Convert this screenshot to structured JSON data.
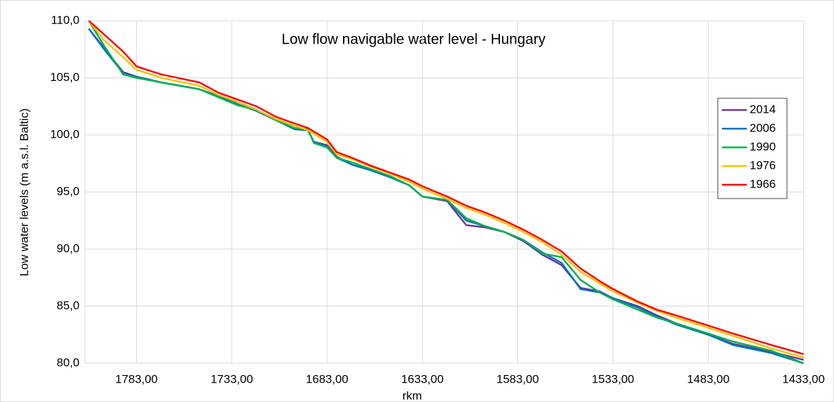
{
  "chart_data": {
    "type": "line",
    "title": "Low flow  navigable water level - Hungary",
    "x_label": "rkm",
    "y_label": "Low water levels (m a.s.l. Baltic)",
    "x": [
      1808,
      1800,
      1790,
      1783,
      1770,
      1750,
      1740,
      1730,
      1720,
      1710,
      1700,
      1693,
      1690,
      1683,
      1678,
      1670,
      1660,
      1650,
      1640,
      1633,
      1620,
      1610,
      1600,
      1590,
      1580,
      1570,
      1560,
      1550,
      1540,
      1533,
      1520,
      1510,
      1500,
      1483,
      1470,
      1450,
      1433
    ],
    "series": [
      {
        "name": "2014",
        "color": "#7030a0",
        "values": [
          109.3,
          107.6,
          105.5,
          105.1,
          104.6,
          104.0,
          103.4,
          102.7,
          102.1,
          101.3,
          100.5,
          100.4,
          99.4,
          99.1,
          98.1,
          97.4,
          96.9,
          96.3,
          95.6,
          94.6,
          94.2,
          92.1,
          91.9,
          91.5,
          90.7,
          89.5,
          88.6,
          86.6,
          86.3,
          85.7,
          85.0,
          84.2,
          83.5,
          82.5,
          81.7,
          81.0,
          80.3
        ]
      },
      {
        "name": "2006",
        "color": "#0070c0",
        "values": [
          109.3,
          107.5,
          105.4,
          105.1,
          104.6,
          104.0,
          103.4,
          102.7,
          102.1,
          101.3,
          100.5,
          100.4,
          99.4,
          99.0,
          98.0,
          97.4,
          96.9,
          96.3,
          95.6,
          94.6,
          94.3,
          92.5,
          92.0,
          91.5,
          90.8,
          89.7,
          88.8,
          86.5,
          86.2,
          85.7,
          84.9,
          84.1,
          83.4,
          82.5,
          81.6,
          80.9,
          80.0
        ]
      },
      {
        "name": "1990",
        "color": "#00b050",
        "values": [
          110.0,
          107.8,
          105.3,
          105.0,
          104.6,
          104.0,
          103.3,
          102.6,
          102.2,
          101.3,
          100.6,
          100.5,
          99.3,
          98.9,
          98.0,
          97.6,
          97.0,
          96.4,
          95.6,
          94.6,
          94.3,
          92.7,
          92.0,
          91.5,
          90.8,
          89.6,
          89.3,
          87.3,
          86.2,
          85.6,
          84.7,
          84.0,
          83.5,
          82.6,
          81.9,
          81.1,
          80.0
        ]
      },
      {
        "name": "1976",
        "color": "#ffc000",
        "values": [
          110.0,
          108.3,
          106.8,
          105.7,
          105.0,
          104.3,
          103.5,
          102.9,
          102.2,
          101.4,
          100.8,
          100.4,
          100.1,
          99.4,
          98.3,
          97.9,
          97.2,
          96.6,
          95.9,
          95.3,
          94.4,
          93.6,
          93.0,
          92.3,
          91.5,
          90.6,
          89.5,
          88.0,
          87.0,
          86.3,
          85.3,
          84.6,
          84.0,
          83.1,
          82.4,
          81.3,
          80.5
        ]
      },
      {
        "name": "1966",
        "color": "#ff0000",
        "values": [
          110.0,
          108.8,
          107.3,
          106.0,
          105.3,
          104.6,
          103.7,
          103.1,
          102.5,
          101.6,
          101.0,
          100.6,
          100.3,
          99.6,
          98.5,
          98.0,
          97.3,
          96.7,
          96.1,
          95.5,
          94.6,
          93.8,
          93.2,
          92.5,
          91.7,
          90.8,
          89.8,
          88.3,
          87.2,
          86.5,
          85.4,
          84.7,
          84.2,
          83.3,
          82.6,
          81.6,
          80.8
        ]
      }
    ],
    "xlim": [
      1810,
      1433
    ],
    "ylim": [
      80,
      110
    ],
    "xticks": [
      {
        "value": 1783,
        "label": "1783,00"
      },
      {
        "value": 1733,
        "label": "1733,00"
      },
      {
        "value": 1683,
        "label": "1683,00"
      },
      {
        "value": 1633,
        "label": "1633,00"
      },
      {
        "value": 1583,
        "label": "1583,00"
      },
      {
        "value": 1533,
        "label": "1533,00"
      },
      {
        "value": 1483,
        "label": "1483,00"
      },
      {
        "value": 1433,
        "label": "1433,00"
      }
    ],
    "yticks": [
      {
        "value": 80,
        "label": "80,0"
      },
      {
        "value": 85,
        "label": "85,0"
      },
      {
        "value": 90,
        "label": "90,0"
      },
      {
        "value": 95,
        "label": "95,0"
      },
      {
        "value": 100,
        "label": "100,0"
      },
      {
        "value": 105,
        "label": "105,0"
      },
      {
        "value": 110,
        "label": "110,0"
      }
    ],
    "grid": true,
    "legend": "upper right"
  }
}
